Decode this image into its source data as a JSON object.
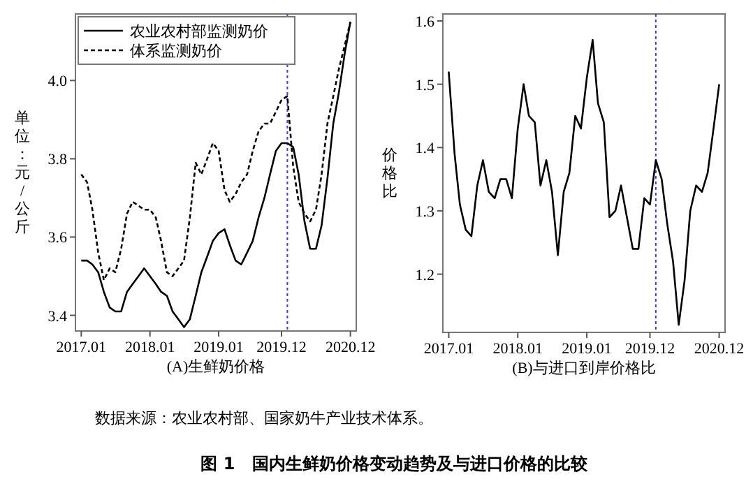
{
  "chart_data": [
    {
      "type": "line",
      "title": "图 1　国内生鲜奶价格变动趋势及与进口价格的比较",
      "xlabel": "(A)生鲜奶价格",
      "ylabel": "单位：元/公斤",
      "annotations": [
        "数据来源：农业农村部、国家奶牛产业技术体系。"
      ],
      "x": [
        "2017-01",
        "2017-02",
        "2017-03",
        "2017-04",
        "2017-05",
        "2017-06",
        "2017-07",
        "2017-08",
        "2017-09",
        "2017-10",
        "2017-11",
        "2017-12",
        "2018-01",
        "2018-02",
        "2018-03",
        "2018-04",
        "2018-05",
        "2018-06",
        "2018-07",
        "2018-08",
        "2018-09",
        "2018-10",
        "2018-11",
        "2018-12",
        "2019-01",
        "2019-02",
        "2019-03",
        "2019-04",
        "2019-05",
        "2019-06",
        "2019-07",
        "2019-08",
        "2019-09",
        "2019-10",
        "2019-11",
        "2019-12",
        "2020-01",
        "2020-02",
        "2020-03",
        "2020-04",
        "2020-05",
        "2020-06",
        "2020-07",
        "2020-08",
        "2020-09",
        "2020-10",
        "2020-11",
        "2020-12"
      ],
      "series": [
        {
          "name": "农业农村部监测奶价",
          "color": "#000000",
          "line_style": "solid",
          "values": [
            3.54,
            3.54,
            3.53,
            3.51,
            3.46,
            3.42,
            3.41,
            3.41,
            3.46,
            3.48,
            3.5,
            3.52,
            3.5,
            3.48,
            3.46,
            3.45,
            3.41,
            3.39,
            3.37,
            3.39,
            3.45,
            3.51,
            3.55,
            3.59,
            3.61,
            3.62,
            3.58,
            3.54,
            3.53,
            3.56,
            3.59,
            3.65,
            3.7,
            3.76,
            3.82,
            3.84,
            3.84,
            3.83,
            3.76,
            3.64,
            3.57,
            3.57,
            3.63,
            3.75,
            3.89,
            3.97,
            4.07,
            4.15
          ]
        },
        {
          "name": "体系监测奶价",
          "color": "#000000",
          "line_style": "dashed",
          "values": [
            3.76,
            3.74,
            3.67,
            3.56,
            3.49,
            3.52,
            3.51,
            3.57,
            3.66,
            3.69,
            3.68,
            3.67,
            3.67,
            3.65,
            3.59,
            3.51,
            3.5,
            3.52,
            3.54,
            3.65,
            3.79,
            3.76,
            3.8,
            3.84,
            3.82,
            3.72,
            3.69,
            3.71,
            3.74,
            3.76,
            3.82,
            3.87,
            3.89,
            3.89,
            3.92,
            3.95,
            3.96,
            3.78,
            3.69,
            3.66,
            3.64,
            3.67,
            3.76,
            3.89,
            3.96,
            4.03,
            4.09,
            4.15
          ]
        }
      ],
      "xlim": [
        "2016-12",
        "2021-01"
      ],
      "xticks": [
        {
          "value": "2017-01",
          "label": "2017.01"
        },
        {
          "value": "2018-01",
          "label": "2018.01"
        },
        {
          "value": "2019-01",
          "label": "2019.01"
        },
        {
          "value": "2019-12",
          "label": "2019.12"
        },
        {
          "value": "2020-12",
          "label": "2020.12"
        }
      ],
      "ylim": [
        3.36,
        4.17
      ],
      "yticks": [
        3.4,
        3.6,
        3.8,
        {
          "value": 4,
          "label": "4.0"
        }
      ],
      "legend": "top left",
      "ref_lines": [
        {
          "axis": "x",
          "value": "2020-01",
          "color": "#4040d0",
          "line_style": "dotted"
        }
      ]
    },
    {
      "type": "line",
      "xlabel": "(B)与进口到岸价格比",
      "ylabel": "价格比",
      "x": [
        "2017-01",
        "2017-02",
        "2017-03",
        "2017-04",
        "2017-05",
        "2017-06",
        "2017-07",
        "2017-08",
        "2017-09",
        "2017-10",
        "2017-11",
        "2017-12",
        "2018-01",
        "2018-02",
        "2018-03",
        "2018-04",
        "2018-05",
        "2018-06",
        "2018-07",
        "2018-08",
        "2018-09",
        "2018-10",
        "2018-11",
        "2018-12",
        "2019-01",
        "2019-02",
        "2019-03",
        "2019-04",
        "2019-05",
        "2019-06",
        "2019-07",
        "2019-08",
        "2019-09",
        "2019-10",
        "2019-11",
        "2019-12",
        "2020-01",
        "2020-02",
        "2020-03",
        "2020-04",
        "2020-05",
        "2020-06",
        "2020-07",
        "2020-08",
        "2020-09",
        "2020-10",
        "2020-11",
        "2020-12"
      ],
      "series": [
        {
          "color": "#000000",
          "line_style": "solid",
          "values": [
            1.52,
            1.39,
            1.31,
            1.27,
            1.26,
            1.34,
            1.38,
            1.33,
            1.32,
            1.35,
            1.35,
            1.32,
            1.43,
            1.5,
            1.45,
            1.44,
            1.34,
            1.38,
            1.33,
            1.23,
            1.33,
            1.36,
            1.45,
            1.43,
            1.51,
            1.57,
            1.47,
            1.44,
            1.29,
            1.3,
            1.34,
            1.29,
            1.24,
            1.24,
            1.32,
            1.31,
            1.38,
            1.35,
            1.28,
            1.22,
            1.12,
            1.19,
            1.3,
            1.34,
            1.33,
            1.36,
            1.43,
            1.5
          ]
        }
      ],
      "xlim": [
        "2016-12",
        "2021-01"
      ],
      "xticks": [
        {
          "value": "2017-01",
          "label": "2017.01"
        },
        {
          "value": "2018-01",
          "label": "2018.01"
        },
        {
          "value": "2019-01",
          "label": "2019.01"
        },
        {
          "value": "2019-12",
          "label": "2019.12"
        },
        {
          "value": "2020-12",
          "label": "2020.12"
        }
      ],
      "ylim": [
        1.108,
        1.611
      ],
      "yticks": [
        1.2,
        1.3,
        1.4,
        1.5,
        1.6
      ],
      "ref_lines": [
        {
          "axis": "x",
          "value": "2020-01",
          "color": "#4040d0",
          "line_style": "dotted"
        }
      ]
    }
  ]
}
